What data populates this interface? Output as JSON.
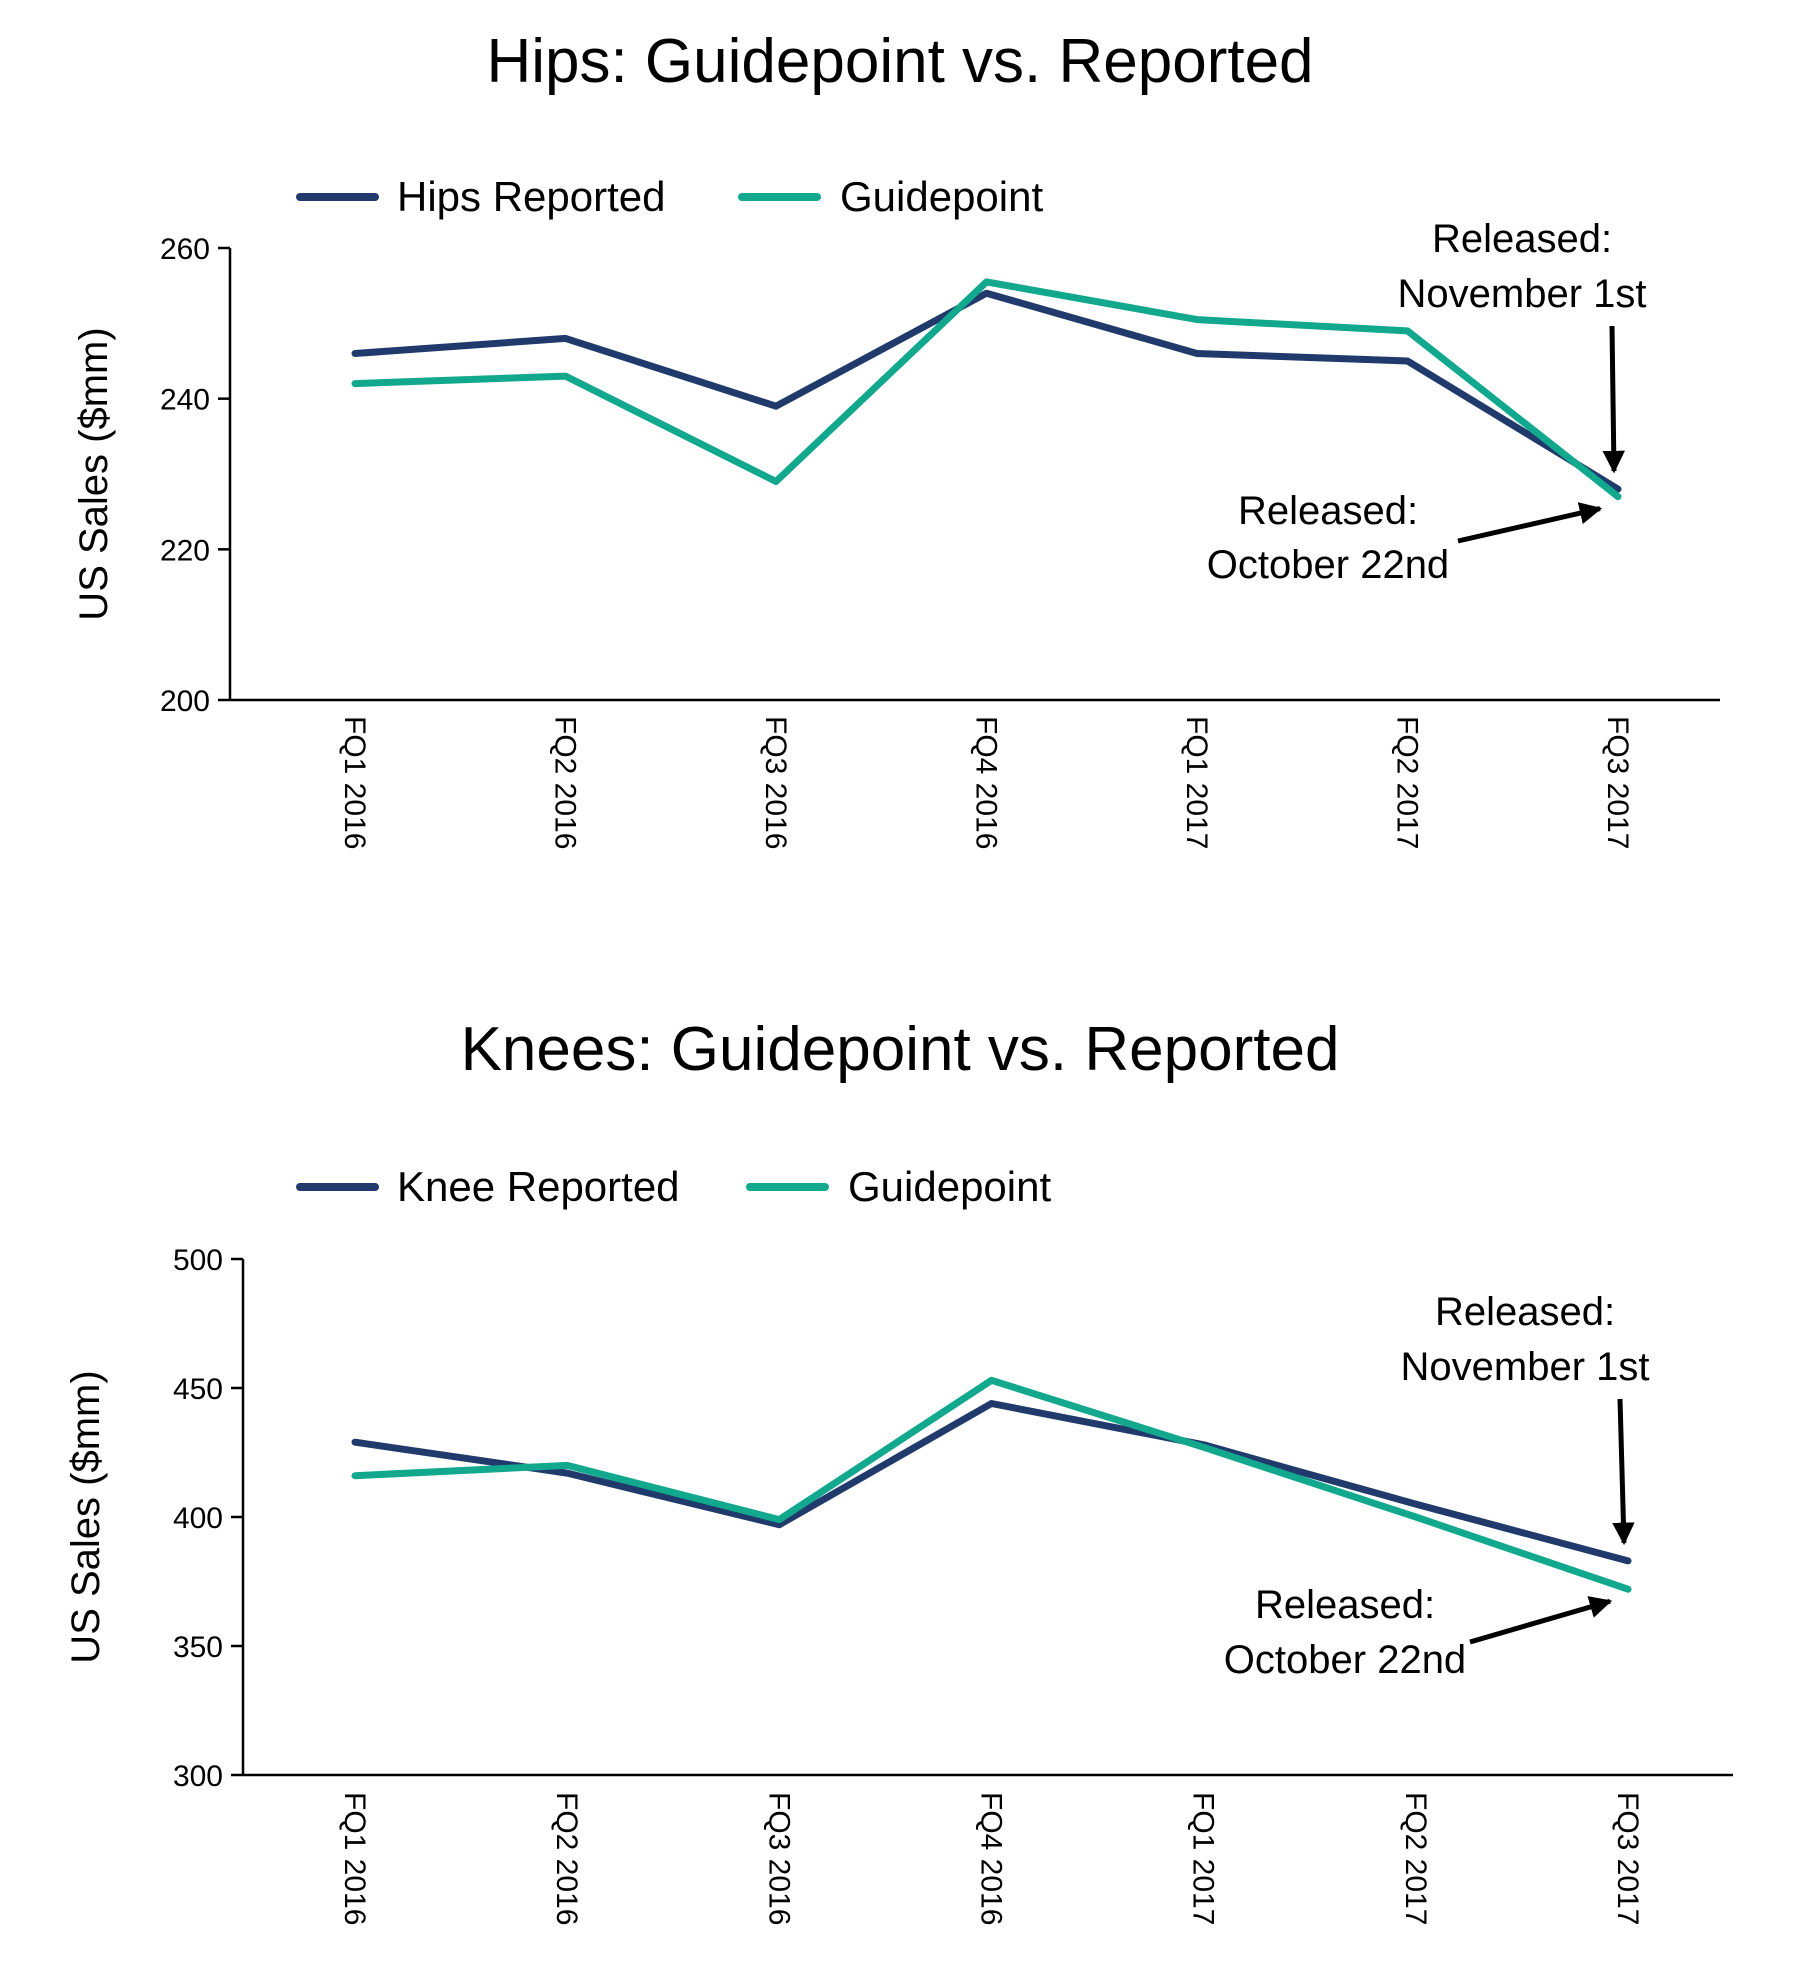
{
  "colors": {
    "reported": "#1f3a6b",
    "guidepoint": "#12a88e",
    "axis": "#000000",
    "annotation": "#000000"
  },
  "chart_data": [
    {
      "type": "line",
      "title": "Hips: Guidepoint vs. Reported",
      "xlabel": "",
      "ylabel": "US Sales ($mm)",
      "ylim": [
        200,
        260
      ],
      "yticks": [
        200,
        220,
        240,
        260
      ],
      "categories": [
        "FQ1 2016",
        "FQ2 2016",
        "FQ3 2016",
        "FQ4 2016",
        "FQ1 2017",
        "FQ2 2017",
        "FQ3 2017"
      ],
      "legend_position": "top-left",
      "grid": false,
      "series": [
        {
          "name": "Hips Reported",
          "color_key": "reported",
          "values": [
            246,
            248,
            239,
            254,
            246,
            245,
            228
          ]
        },
        {
          "name": "Guidepoint",
          "color_key": "guidepoint",
          "values": [
            242,
            243,
            229,
            255.5,
            250.5,
            249,
            227
          ]
        }
      ],
      "annotations": [
        {
          "lines": [
            "Released:",
            "November 1st"
          ],
          "series_index": 0,
          "point_index": 6
        },
        {
          "lines": [
            "Released:",
            "October 22nd"
          ],
          "series_index": 1,
          "point_index": 6
        }
      ]
    },
    {
      "type": "line",
      "title": "Knees: Guidepoint vs. Reported",
      "xlabel": "",
      "ylabel": "US Sales ($mm)",
      "ylim": [
        300,
        500
      ],
      "yticks": [
        300,
        350,
        400,
        450,
        500
      ],
      "categories": [
        "FQ1 2016",
        "FQ2 2016",
        "FQ3 2016",
        "FQ4 2016",
        "FQ1 2017",
        "FQ2 2017",
        "FQ3 2017"
      ],
      "legend_position": "top-left",
      "grid": false,
      "series": [
        {
          "name": "Knee Reported",
          "color_key": "reported",
          "values": [
            429,
            417,
            397,
            444,
            428,
            405,
            383
          ]
        },
        {
          "name": "Guidepoint",
          "color_key": "guidepoint",
          "values": [
            416,
            420,
            399,
            453,
            427,
            400,
            372
          ]
        }
      ],
      "annotations": [
        {
          "lines": [
            "Released:",
            "November 1st"
          ],
          "series_index": 0,
          "point_index": 6
        },
        {
          "lines": [
            "Released:",
            "October 22nd"
          ],
          "series_index": 1,
          "point_index": 6
        }
      ]
    }
  ]
}
